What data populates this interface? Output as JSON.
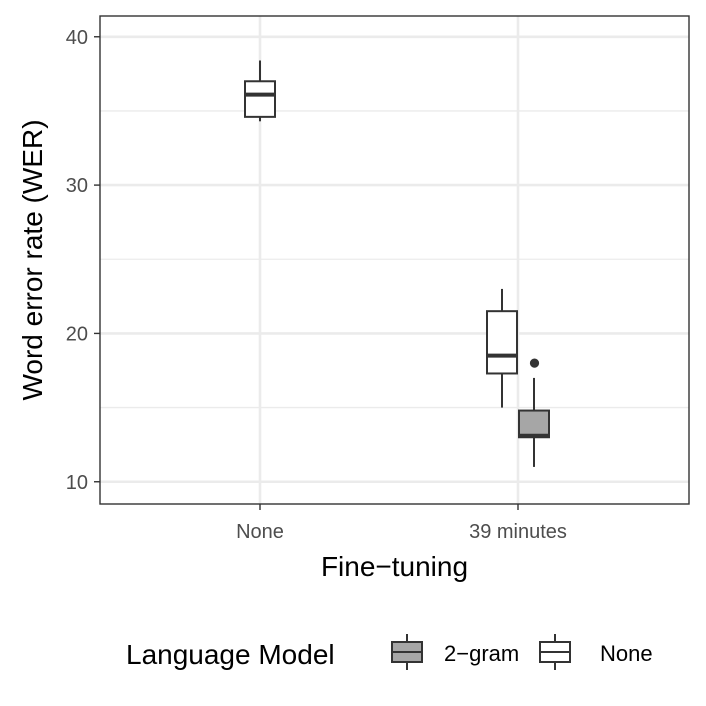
{
  "chart_data": {
    "type": "box",
    "title": "",
    "xlabel": "Fine−tuning",
    "ylabel": "Word error rate (WER)",
    "categories": [
      "None",
      "39 minutes"
    ],
    "yticks": [
      10,
      20,
      30,
      40
    ],
    "ylim": [
      8.5,
      41.4
    ],
    "grid": true,
    "legend": {
      "title": "Language Model",
      "position": "bottom",
      "entries": [
        {
          "name": "2−gram",
          "fill": "#a6a6a6"
        },
        {
          "name": "None",
          "fill": "#ffffff"
        }
      ]
    },
    "series": [
      {
        "name": "None",
        "fill": "#ffffff",
        "boxes": [
          {
            "category": "None",
            "min": 34.3,
            "q1": 34.6,
            "median": 36.1,
            "q3": 37.0,
            "max": 38.4,
            "outliers": []
          },
          {
            "category": "39 minutes",
            "min": 15.0,
            "q1": 17.3,
            "median": 18.5,
            "q3": 21.5,
            "max": 23.0,
            "outliers": []
          }
        ]
      },
      {
        "name": "2−gram",
        "fill": "#a6a6a6",
        "boxes": [
          {
            "category": "39 minutes",
            "min": 11.0,
            "q1": 13.0,
            "median": 13.1,
            "q3": 14.8,
            "max": 17.0,
            "outliers": [
              18.0
            ]
          }
        ]
      }
    ]
  }
}
